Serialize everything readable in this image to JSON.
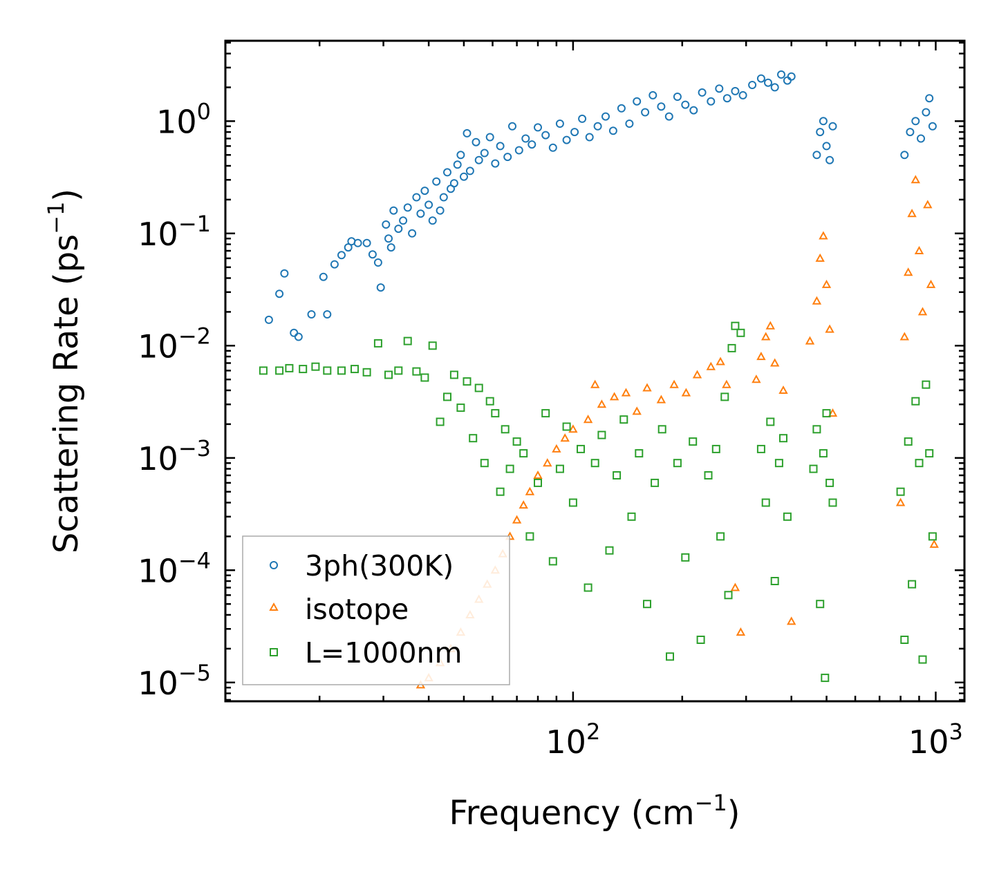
{
  "chart_data": {
    "type": "scatter",
    "xscale": "log",
    "yscale": "log",
    "xlim": [
      11,
      1200
    ],
    "ylim": [
      6.8e-06,
      5.2
    ],
    "xlabel": "Frequency (cm",
    "xlabel_sup": "−1",
    "xlabel_tail": ")",
    "ylabel": "Scattering Rate (ps",
    "ylabel_sup": "−1",
    "ylabel_tail": ")",
    "x_ticks": [
      {
        "value": 100,
        "base": "10",
        "exp": "2"
      },
      {
        "value": 1000,
        "base": "10",
        "exp": "3"
      }
    ],
    "y_ticks": [
      {
        "value": 1,
        "base": "10",
        "exp": "0"
      },
      {
        "value": 0.1,
        "base": "10",
        "exp": "−1"
      },
      {
        "value": 0.01,
        "base": "10",
        "exp": "−2"
      },
      {
        "value": 0.001,
        "base": "10",
        "exp": "−3"
      },
      {
        "value": 0.0001,
        "base": "10",
        "exp": "−4"
      },
      {
        "value": 1e-05,
        "base": "10",
        "exp": "−5"
      }
    ],
    "legend_position": "lower-left",
    "series": [
      {
        "name": "3ph(300K)",
        "marker": "circle",
        "color": "#1f77b4",
        "points": [
          [
            14.5,
            0.017
          ],
          [
            15.5,
            0.029
          ],
          [
            16,
            0.044
          ],
          [
            17,
            0.013
          ],
          [
            17.5,
            0.012
          ],
          [
            19,
            0.019
          ],
          [
            20.5,
            0.041
          ],
          [
            21,
            0.019
          ],
          [
            22,
            0.053
          ],
          [
            23,
            0.064
          ],
          [
            24,
            0.075
          ],
          [
            24.5,
            0.085
          ],
          [
            25.5,
            0.082
          ],
          [
            27,
            0.082
          ],
          [
            28,
            0.065
          ],
          [
            29,
            0.055
          ],
          [
            29.5,
            0.033
          ],
          [
            30.5,
            0.12
          ],
          [
            31,
            0.09
          ],
          [
            31.5,
            0.075
          ],
          [
            32,
            0.16
          ],
          [
            33,
            0.11
          ],
          [
            34,
            0.13
          ],
          [
            35,
            0.17
          ],
          [
            36,
            0.1
          ],
          [
            37,
            0.21
          ],
          [
            38,
            0.15
          ],
          [
            39,
            0.24
          ],
          [
            40,
            0.18
          ],
          [
            41,
            0.13
          ],
          [
            42,
            0.29
          ],
          [
            43,
            0.16
          ],
          [
            44,
            0.21
          ],
          [
            45,
            0.35
          ],
          [
            46,
            0.25
          ],
          [
            47,
            0.28
          ],
          [
            48,
            0.41
          ],
          [
            49,
            0.5
          ],
          [
            50,
            0.32
          ],
          [
            51,
            0.78
          ],
          [
            52,
            0.36
          ],
          [
            54,
            0.65
          ],
          [
            55,
            0.45
          ],
          [
            57,
            0.52
          ],
          [
            59,
            0.72
          ],
          [
            61,
            0.42
          ],
          [
            63,
            0.6
          ],
          [
            66,
            0.48
          ],
          [
            68,
            0.9
          ],
          [
            71,
            0.55
          ],
          [
            74,
            0.7
          ],
          [
            77,
            0.62
          ],
          [
            80,
            0.88
          ],
          [
            84,
            0.75
          ],
          [
            88,
            0.58
          ],
          [
            92,
            0.95
          ],
          [
            96,
            0.68
          ],
          [
            101,
            0.8
          ],
          [
            106,
            1.05
          ],
          [
            111,
            0.72
          ],
          [
            117,
            0.9
          ],
          [
            123,
            1.1
          ],
          [
            129,
            0.82
          ],
          [
            136,
            1.3
          ],
          [
            143,
            0.95
          ],
          [
            150,
            1.5
          ],
          [
            158,
            1.2
          ],
          [
            166,
            1.7
          ],
          [
            175,
            1.35
          ],
          [
            184,
            1.1
          ],
          [
            194,
            1.65
          ],
          [
            204,
            1.4
          ],
          [
            215,
            1.25
          ],
          [
            227,
            1.8
          ],
          [
            240,
            1.5
          ],
          [
            253,
            1.95
          ],
          [
            266,
            1.6
          ],
          [
            280,
            1.85
          ],
          [
            294,
            1.7
          ],
          [
            312,
            2.1
          ],
          [
            330,
            2.4
          ],
          [
            345,
            2.2
          ],
          [
            360,
            2.0
          ],
          [
            375,
            2.6
          ],
          [
            390,
            2.3
          ],
          [
            400,
            2.5
          ],
          [
            470,
            0.5
          ],
          [
            480,
            0.8
          ],
          [
            490,
            1.0
          ],
          [
            500,
            0.6
          ],
          [
            510,
            0.45
          ],
          [
            520,
            0.9
          ],
          [
            820,
            0.5
          ],
          [
            850,
            0.8
          ],
          [
            880,
            1.0
          ],
          [
            910,
            0.7
          ],
          [
            940,
            1.2
          ],
          [
            960,
            1.6
          ],
          [
            980,
            0.9
          ]
        ]
      },
      {
        "name": "isotope",
        "marker": "triangle",
        "color": "#ff7f0e",
        "points": [
          [
            38,
            9.5e-06
          ],
          [
            40,
            1.1e-05
          ],
          [
            43,
            1.5e-05
          ],
          [
            46,
            2e-05
          ],
          [
            49,
            2.8e-05
          ],
          [
            52,
            4e-05
          ],
          [
            55,
            5.5e-05
          ],
          [
            58,
            7.5e-05
          ],
          [
            61,
            0.0001
          ],
          [
            64,
            0.00014
          ],
          [
            67,
            0.0002
          ],
          [
            70,
            0.00028
          ],
          [
            73,
            0.00038
          ],
          [
            76,
            0.0005
          ],
          [
            80,
            0.0007
          ],
          [
            85,
            0.0009
          ],
          [
            90,
            0.0012
          ],
          [
            95,
            0.0015
          ],
          [
            100,
            0.0018
          ],
          [
            110,
            0.0022
          ],
          [
            115,
            0.0045
          ],
          [
            120,
            0.003
          ],
          [
            130,
            0.0035
          ],
          [
            140,
            0.0038
          ],
          [
            150,
            0.0026
          ],
          [
            160,
            0.0042
          ],
          [
            175,
            0.0033
          ],
          [
            190,
            0.0045
          ],
          [
            205,
            0.0038
          ],
          [
            220,
            0.0055
          ],
          [
            240,
            0.0065
          ],
          [
            255,
            0.0072
          ],
          [
            265,
            0.0045
          ],
          [
            280,
            7e-05
          ],
          [
            290,
            2.8e-05
          ],
          [
            320,
            0.005
          ],
          [
            330,
            0.008
          ],
          [
            340,
            0.012
          ],
          [
            350,
            0.015
          ],
          [
            360,
            0.007
          ],
          [
            380,
            0.004
          ],
          [
            400,
            3.5e-05
          ],
          [
            450,
            0.011
          ],
          [
            470,
            0.025
          ],
          [
            480,
            0.06
          ],
          [
            490,
            0.095
          ],
          [
            500,
            0.035
          ],
          [
            510,
            0.014
          ],
          [
            520,
            0.0025
          ],
          [
            800,
            0.0004
          ],
          [
            820,
            0.012
          ],
          [
            840,
            0.045
          ],
          [
            860,
            0.15
          ],
          [
            880,
            0.3
          ],
          [
            900,
            0.07
          ],
          [
            920,
            0.02
          ],
          [
            950,
            0.18
          ],
          [
            970,
            0.035
          ],
          [
            990,
            0.00017
          ]
        ]
      },
      {
        "name": "L=1000nm",
        "marker": "square",
        "color": "#2ca02c",
        "points": [
          [
            14,
            0.006
          ],
          [
            15.5,
            0.006
          ],
          [
            16.5,
            0.0063
          ],
          [
            18,
            0.0062
          ],
          [
            19.5,
            0.0065
          ],
          [
            21,
            0.006
          ],
          [
            23,
            0.006
          ],
          [
            25,
            0.0062
          ],
          [
            27,
            0.0058
          ],
          [
            29,
            0.0105
          ],
          [
            31,
            0.0055
          ],
          [
            33,
            0.006
          ],
          [
            35,
            0.011
          ],
          [
            37,
            0.0059
          ],
          [
            39,
            0.0052
          ],
          [
            41,
            0.01
          ],
          [
            43,
            0.0021
          ],
          [
            45,
            0.0035
          ],
          [
            47,
            0.0055
          ],
          [
            49,
            0.0028
          ],
          [
            51,
            0.0048
          ],
          [
            53,
            0.0015
          ],
          [
            55,
            0.0042
          ],
          [
            57,
            0.0009
          ],
          [
            59,
            0.0032
          ],
          [
            61,
            0.0025
          ],
          [
            63,
            0.0005
          ],
          [
            65,
            0.0018
          ],
          [
            67,
            0.0008
          ],
          [
            70,
            0.0014
          ],
          [
            73,
            0.0011
          ],
          [
            76,
            0.0002
          ],
          [
            80,
            0.0006
          ],
          [
            84,
            0.0025
          ],
          [
            88,
            0.00012
          ],
          [
            92,
            0.0008
          ],
          [
            96,
            0.0019
          ],
          [
            100,
            0.0004
          ],
          [
            105,
            0.0012
          ],
          [
            110,
            7e-05
          ],
          [
            115,
            0.0009
          ],
          [
            120,
            0.0016
          ],
          [
            126,
            0.00015
          ],
          [
            132,
            0.0007
          ],
          [
            138,
            0.0022
          ],
          [
            145,
            0.0003
          ],
          [
            152,
            0.0011
          ],
          [
            160,
            5e-05
          ],
          [
            168,
            0.0006
          ],
          [
            176,
            0.0018
          ],
          [
            185,
            1.7e-05
          ],
          [
            194,
            0.0009
          ],
          [
            204,
            0.00013
          ],
          [
            214,
            0.0014
          ],
          [
            225,
            2.4e-05
          ],
          [
            236,
            0.0007
          ],
          [
            248,
            0.0012
          ],
          [
            255,
            0.0002
          ],
          [
            262,
            0.0035
          ],
          [
            268,
            6e-05
          ],
          [
            274,
            0.0095
          ],
          [
            280,
            0.015
          ],
          [
            290,
            0.013
          ],
          [
            330,
            0.0012
          ],
          [
            340,
            0.0004
          ],
          [
            350,
            0.0021
          ],
          [
            360,
            8e-05
          ],
          [
            370,
            0.0009
          ],
          [
            380,
            0.0015
          ],
          [
            390,
            0.0003
          ],
          [
            460,
            0.0008
          ],
          [
            470,
            0.0018
          ],
          [
            480,
            5e-05
          ],
          [
            490,
            0.0011
          ],
          [
            495,
            1.1e-05
          ],
          [
            500,
            0.0025
          ],
          [
            510,
            0.0006
          ],
          [
            520,
            0.0004
          ],
          [
            800,
            0.0005
          ],
          [
            820,
            2.4e-05
          ],
          [
            840,
            0.0014
          ],
          [
            860,
            7.5e-05
          ],
          [
            880,
            0.0032
          ],
          [
            900,
            0.0009
          ],
          [
            920,
            1.6e-05
          ],
          [
            940,
            0.0045
          ],
          [
            960,
            0.0011
          ],
          [
            980,
            0.0002
          ]
        ]
      }
    ]
  }
}
